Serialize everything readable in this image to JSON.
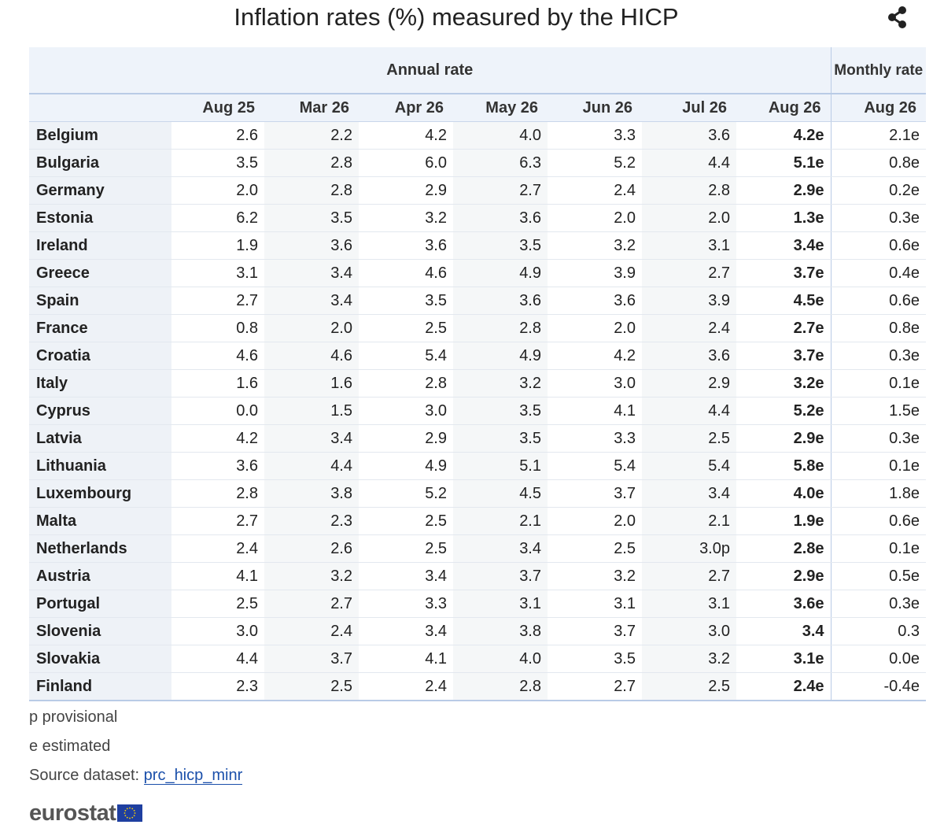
{
  "title": "Inflation rates (%) measured by the HICP",
  "share_icon": "share-icon",
  "header": {
    "group_annual": "Annual rate",
    "group_monthly": "Monthly rate",
    "periods": [
      "Aug 25",
      "Mar 26",
      "Apr 26",
      "May 26",
      "Jun 26",
      "Jul 26",
      "Aug 26",
      "Aug 26"
    ]
  },
  "rows": [
    {
      "country": "Belgium",
      "values": [
        "2.6",
        "2.2",
        "4.2",
        "4.0",
        "3.3",
        "3.6",
        "4.2e",
        "2.1e"
      ]
    },
    {
      "country": "Bulgaria",
      "values": [
        "3.5",
        "2.8",
        "6.0",
        "6.3",
        "5.2",
        "4.4",
        "5.1e",
        "0.8e"
      ]
    },
    {
      "country": "Germany",
      "values": [
        "2.0",
        "2.8",
        "2.9",
        "2.7",
        "2.4",
        "2.8",
        "2.9e",
        "0.2e"
      ]
    },
    {
      "country": "Estonia",
      "values": [
        "6.2",
        "3.5",
        "3.2",
        "3.6",
        "2.0",
        "2.0",
        "1.3e",
        "0.3e"
      ]
    },
    {
      "country": "Ireland",
      "values": [
        "1.9",
        "3.6",
        "3.6",
        "3.5",
        "3.2",
        "3.1",
        "3.4e",
        "0.6e"
      ]
    },
    {
      "country": "Greece",
      "values": [
        "3.1",
        "3.4",
        "4.6",
        "4.9",
        "3.9",
        "2.7",
        "3.7e",
        "0.4e"
      ]
    },
    {
      "country": "Spain",
      "values": [
        "2.7",
        "3.4",
        "3.5",
        "3.6",
        "3.6",
        "3.9",
        "4.5e",
        "0.6e"
      ]
    },
    {
      "country": "France",
      "values": [
        "0.8",
        "2.0",
        "2.5",
        "2.8",
        "2.0",
        "2.4",
        "2.7e",
        "0.8e"
      ]
    },
    {
      "country": "Croatia",
      "values": [
        "4.6",
        "4.6",
        "5.4",
        "4.9",
        "4.2",
        "3.6",
        "3.7e",
        "0.3e"
      ]
    },
    {
      "country": "Italy",
      "values": [
        "1.6",
        "1.6",
        "2.8",
        "3.2",
        "3.0",
        "2.9",
        "3.2e",
        "0.1e"
      ]
    },
    {
      "country": "Cyprus",
      "values": [
        "0.0",
        "1.5",
        "3.0",
        "3.5",
        "4.1",
        "4.4",
        "5.2e",
        "1.5e"
      ]
    },
    {
      "country": "Latvia",
      "values": [
        "4.2",
        "3.4",
        "2.9",
        "3.5",
        "3.3",
        "2.5",
        "2.9e",
        "0.3e"
      ]
    },
    {
      "country": "Lithuania",
      "values": [
        "3.6",
        "4.4",
        "4.9",
        "5.1",
        "5.4",
        "5.4",
        "5.8e",
        "0.1e"
      ]
    },
    {
      "country": "Luxembourg",
      "values": [
        "2.8",
        "3.8",
        "5.2",
        "4.5",
        "3.7",
        "3.4",
        "4.0e",
        "1.8e"
      ]
    },
    {
      "country": "Malta",
      "values": [
        "2.7",
        "2.3",
        "2.5",
        "2.1",
        "2.0",
        "2.1",
        "1.9e",
        "0.6e"
      ]
    },
    {
      "country": "Netherlands",
      "values": [
        "2.4",
        "2.6",
        "2.5",
        "3.4",
        "2.5",
        "3.0p",
        "2.8e",
        "0.1e"
      ]
    },
    {
      "country": "Austria",
      "values": [
        "4.1",
        "3.2",
        "3.4",
        "3.7",
        "3.2",
        "2.7",
        "2.9e",
        "0.5e"
      ]
    },
    {
      "country": "Portugal",
      "values": [
        "2.5",
        "2.7",
        "3.3",
        "3.1",
        "3.1",
        "3.1",
        "3.6e",
        "0.3e"
      ]
    },
    {
      "country": "Slovenia",
      "values": [
        "3.0",
        "2.4",
        "3.4",
        "3.8",
        "3.7",
        "3.0",
        "3.4",
        "0.3"
      ]
    },
    {
      "country": "Slovakia",
      "values": [
        "4.4",
        "3.7",
        "4.1",
        "4.0",
        "3.5",
        "3.2",
        "3.1e",
        "0.0e"
      ]
    },
    {
      "country": "Finland",
      "values": [
        "2.3",
        "2.5",
        "2.4",
        "2.8",
        "2.7",
        "2.5",
        "2.4e",
        "-0.4e"
      ]
    }
  ],
  "footnotes": {
    "provisional": "p provisional",
    "estimated": "e estimated",
    "source_label": "Source dataset: ",
    "source_link": "prc_hicp_minr"
  },
  "logo": {
    "text": "eurostat",
    "flag_color": "#1f3fa0",
    "star_color": "#ffd200"
  }
}
